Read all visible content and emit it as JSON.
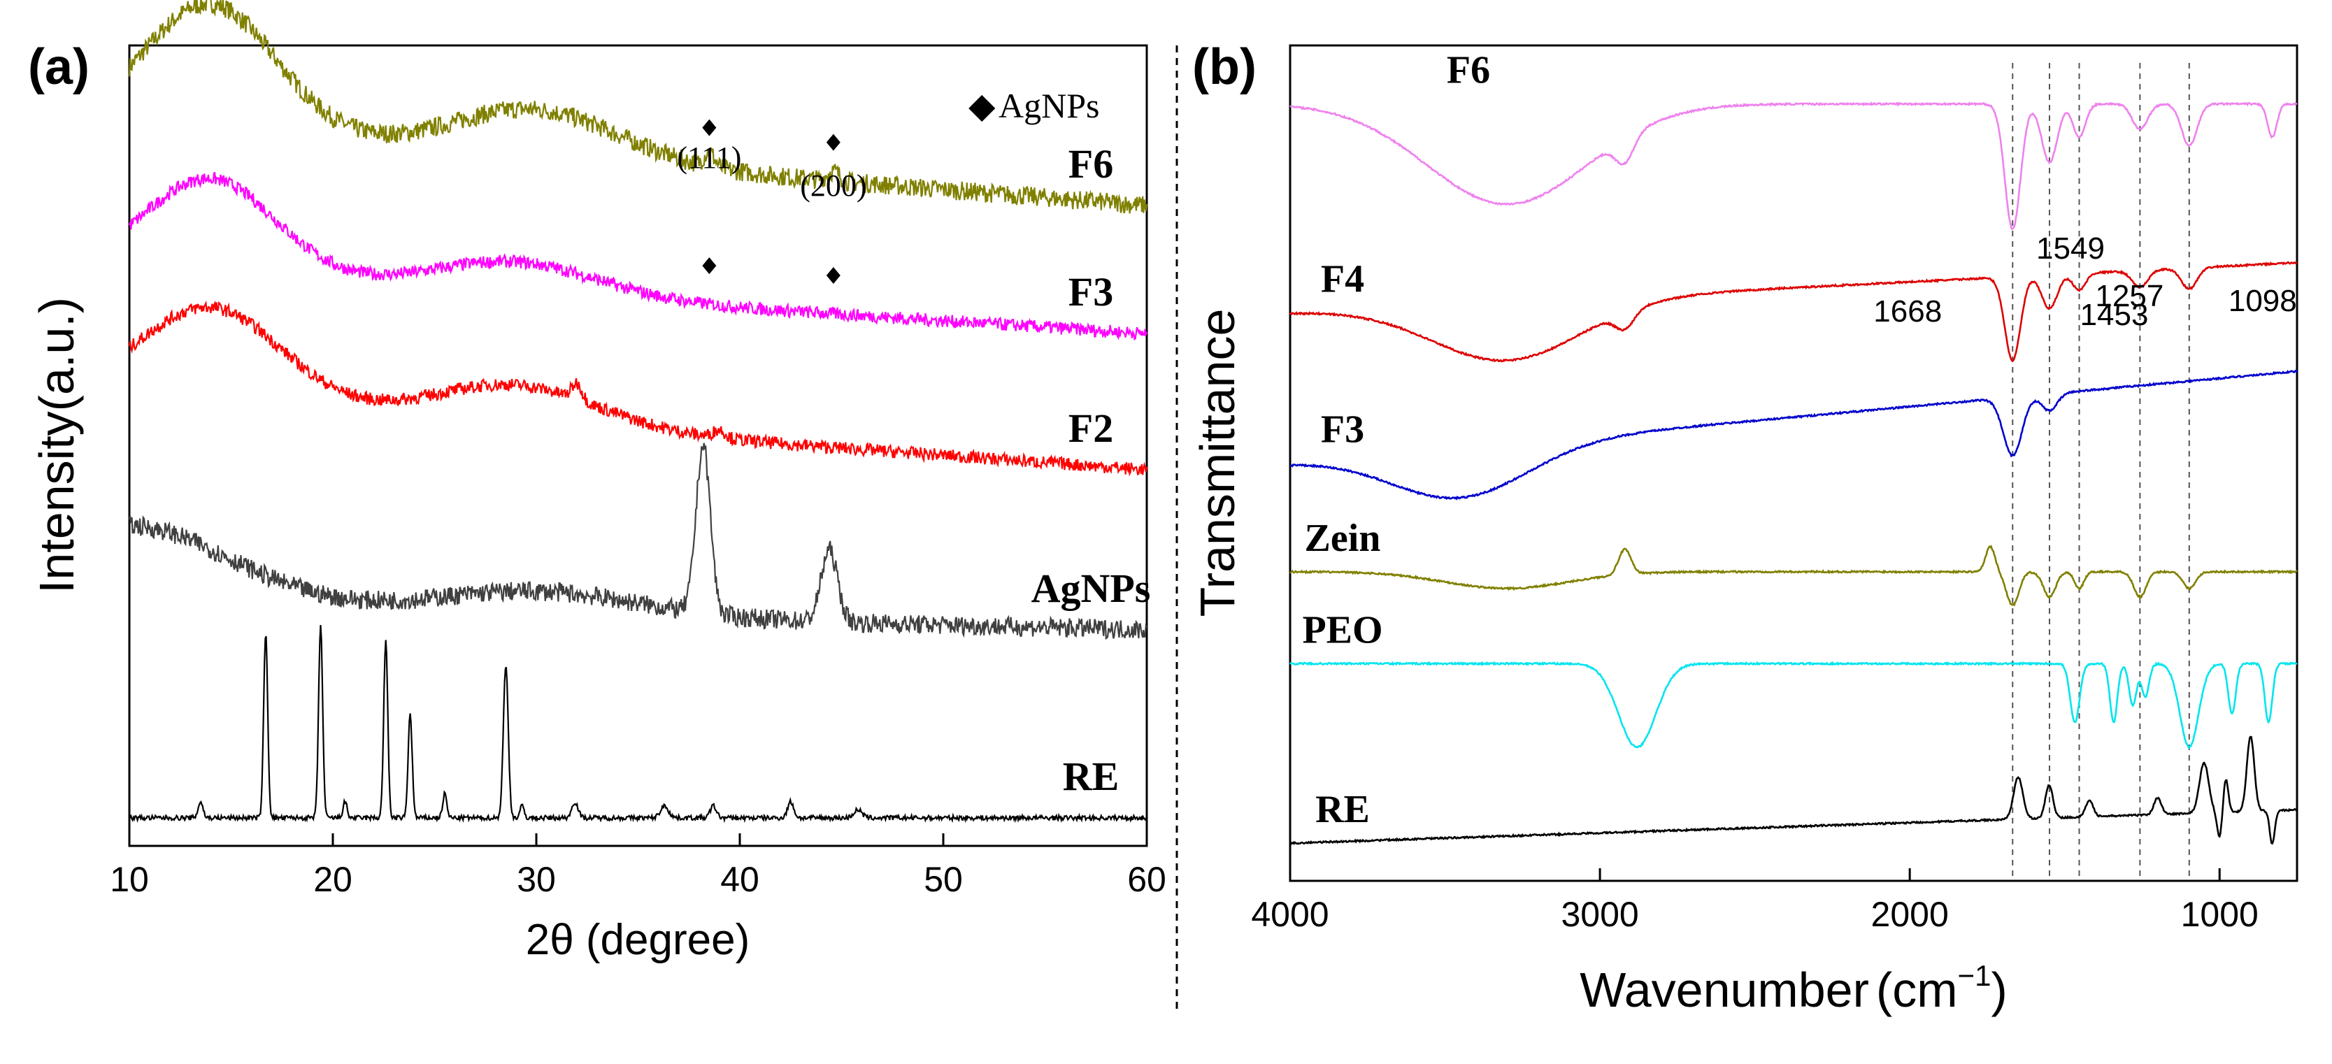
{
  "chart_data": [
    {
      "panel": "(a)",
      "type": "line",
      "title": "",
      "xlabel": "2θ (degree)",
      "ylabel": "Intensity(a.u.)",
      "xlim": [
        10,
        60
      ],
      "xticks": [
        "10",
        "20",
        "30",
        "40",
        "50",
        "60"
      ],
      "legend": {
        "marker": "◆",
        "label": "AgNPs"
      },
      "annotations": [
        {
          "text": "(111)",
          "x": 38.5
        },
        {
          "text": "(200)",
          "x": 44.6
        }
      ],
      "diamond_markers": [
        {
          "series": "F6",
          "x": 38.5
        },
        {
          "series": "F6",
          "x": 44.6
        },
        {
          "series": "F3",
          "x": 38.5
        },
        {
          "series": "F3",
          "x": 44.6
        }
      ],
      "series": [
        {
          "name": "F6",
          "color": "#808000",
          "shape": {
            "offset": 0.9,
            "humps": [
              [
                14,
                0.16,
                3.2
              ],
              [
                30,
                0.06,
                4
              ]
            ],
            "base_slope": -0.1,
            "noise": 0.012,
            "peaks": [
              [
                38.5,
                0.018,
                0.25
              ],
              [
                44.6,
                0.012,
                0.3
              ]
            ]
          }
        },
        {
          "name": "F3",
          "color": "#ff00ff",
          "shape": {
            "offset": 0.72,
            "humps": [
              [
                14,
                0.12,
                3.2
              ],
              [
                29,
                0.04,
                4
              ]
            ],
            "base_slope": -0.08,
            "noise": 0.008,
            "peaks": []
          }
        },
        {
          "name": "F2",
          "color": "#ff0000",
          "shape": {
            "offset": 0.56,
            "humps": [
              [
                14,
                0.12,
                3.5
              ],
              [
                29,
                0.05,
                4
              ]
            ],
            "base_slope": -0.09,
            "noise": 0.008,
            "peaks": [
              [
                32,
                0.02,
                0.25
              ],
              [
                39,
                0.01,
                0.3
              ]
            ]
          }
        },
        {
          "name": "AgNPs",
          "color": "#404040",
          "shape": {
            "offset": 0.3,
            "humps": [
              [
                10,
                0.1,
                5
              ],
              [
                30,
                0.03,
                5
              ]
            ],
            "base_slope": -0.03,
            "noise": 0.012,
            "peaks": [
              [
                38.2,
                0.21,
                0.35
              ],
              [
                44.4,
                0.09,
                0.4
              ]
            ]
          }
        },
        {
          "name": "RE",
          "color": "#000000",
          "shape": {
            "offset": 0.035,
            "humps": [],
            "base_slope": 0.0,
            "noise": 0.003,
            "peaks": [
              [
                13.5,
                0.02,
                0.12
              ],
              [
                16.7,
                0.23,
                0.1
              ],
              [
                19.4,
                0.24,
                0.1
              ],
              [
                20.6,
                0.02,
                0.1
              ],
              [
                22.6,
                0.22,
                0.1
              ],
              [
                23.8,
                0.13,
                0.1
              ],
              [
                25.5,
                0.03,
                0.1
              ],
              [
                28.5,
                0.19,
                0.12
              ],
              [
                29.3,
                0.015,
                0.1
              ],
              [
                31.9,
                0.02,
                0.15
              ],
              [
                36.3,
                0.015,
                0.2
              ],
              [
                38.7,
                0.015,
                0.15
              ],
              [
                42.5,
                0.02,
                0.15
              ],
              [
                45.8,
                0.01,
                0.2
              ]
            ]
          }
        }
      ]
    },
    {
      "panel": "(b)",
      "type": "line",
      "title": "",
      "xlabel": "Wavenumber",
      "xlabel_unit": "(cm",
      "xlabel_sup": "−1",
      "xlabel_close": ")",
      "ylabel": "Transmittance",
      "xlim": [
        4000,
        750
      ],
      "xticks": [
        "4000",
        "3000",
        "2000",
        "1000"
      ],
      "reference_lines": [
        1668,
        1549,
        1453,
        1257,
        1098
      ],
      "peak_labels": [
        "1668",
        "1549",
        "1453",
        "1257",
        "1098"
      ],
      "series": [
        {
          "name": "F6",
          "color": "#ee82ee",
          "shape": {
            "offset": 0.93,
            "broad": [
              [
                3300,
                -0.12,
                260
              ]
            ],
            "bands": [
              [
                2920,
                -0.03,
                30
              ],
              [
                1668,
                -0.15,
                25
              ],
              [
                1549,
                -0.07,
                25
              ],
              [
                1453,
                -0.04,
                20
              ],
              [
                1257,
                -0.03,
                25
              ],
              [
                1098,
                -0.05,
                25
              ],
              [
                830,
                -0.04,
                15
              ]
            ],
            "slope": 0.0
          }
        },
        {
          "name": "F4",
          "color": "#dd0000",
          "shape": {
            "offset": 0.68,
            "broad": [
              [
                3300,
                -0.07,
                240
              ]
            ],
            "bands": [
              [
                2920,
                -0.02,
                30
              ],
              [
                1668,
                -0.1,
                25
              ],
              [
                1549,
                -0.04,
                25
              ],
              [
                1453,
                -0.02,
                20
              ],
              [
                1257,
                -0.02,
                25
              ],
              [
                1098,
                -0.025,
                25
              ]
            ],
            "slope": 0.06
          }
        },
        {
          "name": "F3",
          "color": "#0000cc",
          "shape": {
            "offset": 0.5,
            "broad": [
              [
                3450,
                -0.06,
                220
              ]
            ],
            "bands": [
              [
                1668,
                -0.07,
                30
              ],
              [
                1549,
                -0.02,
                25
              ]
            ],
            "slope": 0.11
          }
        },
        {
          "name": "Zein",
          "color": "#808000",
          "shape": {
            "offset": 0.37,
            "broad": [
              [
                3300,
                -0.02,
                200
              ]
            ],
            "bands": [
              [
                2920,
                0.03,
                20
              ],
              [
                1740,
                0.03,
                15
              ],
              [
                1668,
                -0.04,
                20
              ],
              [
                1549,
                -0.03,
                20
              ],
              [
                1453,
                -0.02,
                15
              ],
              [
                1257,
                -0.03,
                20
              ],
              [
                1098,
                -0.02,
                20
              ]
            ],
            "slope": 0.0
          }
        },
        {
          "name": "PEO",
          "color": "#00e5ee",
          "shape": {
            "offset": 0.26,
            "broad": [],
            "bands": [
              [
                2880,
                -0.1,
                60
              ],
              [
                1467,
                -0.07,
                15
              ],
              [
                1342,
                -0.07,
                12
              ],
              [
                1280,
                -0.05,
                12
              ],
              [
                1240,
                -0.04,
                12
              ],
              [
                1098,
                -0.1,
                30
              ],
              [
                960,
                -0.06,
                12
              ],
              [
                842,
                -0.07,
                12
              ]
            ],
            "slope": 0.0
          }
        },
        {
          "name": "RE",
          "color": "#000000",
          "shape": {
            "offset": 0.045,
            "broad": [],
            "bands": [
              [
                1650,
                0.05,
                15
              ],
              [
                1550,
                0.04,
                12
              ],
              [
                1420,
                0.02,
                12
              ],
              [
                1200,
                0.02,
                12
              ],
              [
                1050,
                0.06,
                15
              ],
              [
                1000,
                -0.03,
                8
              ],
              [
                980,
                0.04,
                8
              ],
              [
                900,
                0.09,
                12
              ],
              [
                830,
                -0.04,
                8
              ]
            ],
            "slope": 0.04
          }
        }
      ]
    }
  ]
}
